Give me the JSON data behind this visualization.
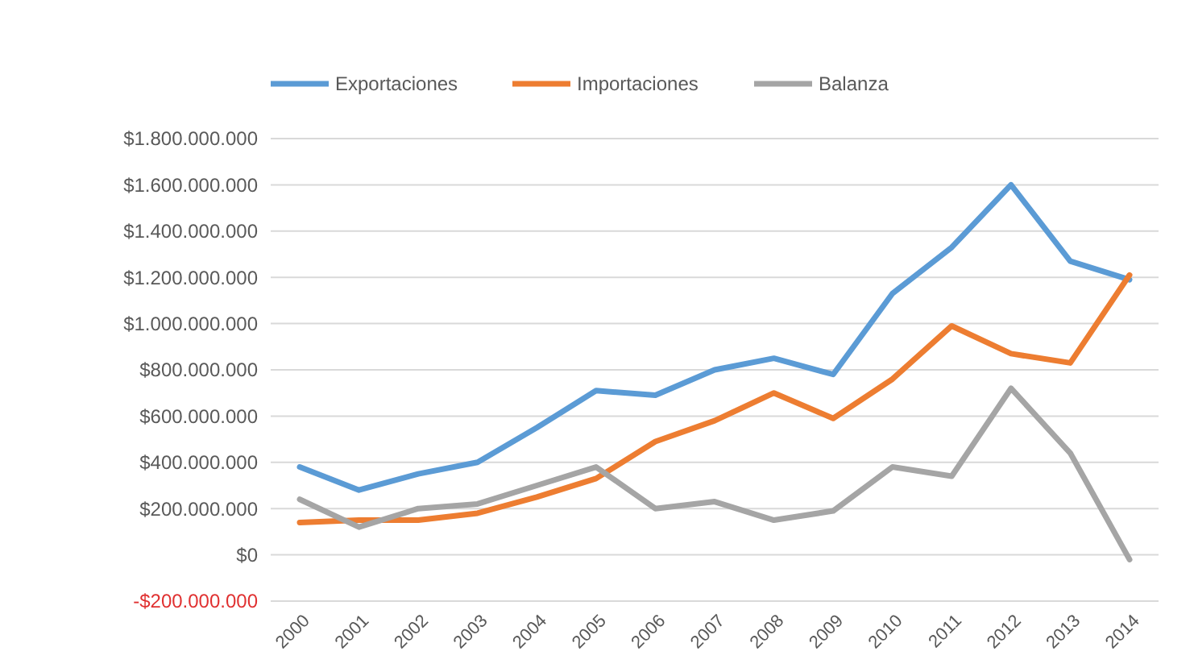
{
  "chart_data": {
    "type": "line",
    "categories": [
      "2000",
      "2001",
      "2002",
      "2003",
      "2004",
      "2005",
      "2006",
      "2007",
      "2008",
      "2009",
      "2010",
      "2011",
      "2012",
      "2013",
      "2014"
    ],
    "series": [
      {
        "name": "Exportaciones",
        "color": "#5b9bd5",
        "values": [
          380000000,
          280000000,
          350000000,
          400000000,
          550000000,
          710000000,
          690000000,
          800000000,
          850000000,
          780000000,
          1130000000,
          1330000000,
          1600000000,
          1270000000,
          1190000000
        ]
      },
      {
        "name": "Importaciones",
        "color": "#ed7d31",
        "values": [
          140000000,
          150000000,
          150000000,
          180000000,
          250000000,
          330000000,
          490000000,
          580000000,
          700000000,
          590000000,
          760000000,
          990000000,
          870000000,
          830000000,
          1210000000
        ]
      },
      {
        "name": "Balanza",
        "color": "#a5a5a5",
        "values": [
          240000000,
          120000000,
          200000000,
          220000000,
          300000000,
          380000000,
          200000000,
          230000000,
          150000000,
          190000000,
          380000000,
          340000000,
          720000000,
          440000000,
          -20000000
        ]
      }
    ],
    "ylim": [
      -200000000,
      1800000000
    ],
    "yticks": [
      {
        "value": -200000000,
        "label": "-$200.000.000"
      },
      {
        "value": 0,
        "label": "$0"
      },
      {
        "value": 200000000,
        "label": "$200.000.000"
      },
      {
        "value": 400000000,
        "label": "$400.000.000"
      },
      {
        "value": 600000000,
        "label": "$600.000.000"
      },
      {
        "value": 800000000,
        "label": "$800.000.000"
      },
      {
        "value": 1000000000,
        "label": "$1.000.000.000"
      },
      {
        "value": 1200000000,
        "label": "$1.200.000.000"
      },
      {
        "value": 1400000000,
        "label": "$1.400.000.000"
      },
      {
        "value": 1600000000,
        "label": "$1.600.000.000"
      },
      {
        "value": 1800000000,
        "label": "$1.800.000.000"
      }
    ],
    "grid": "y",
    "legend": "top",
    "marker": "none",
    "line_style": "solid"
  }
}
